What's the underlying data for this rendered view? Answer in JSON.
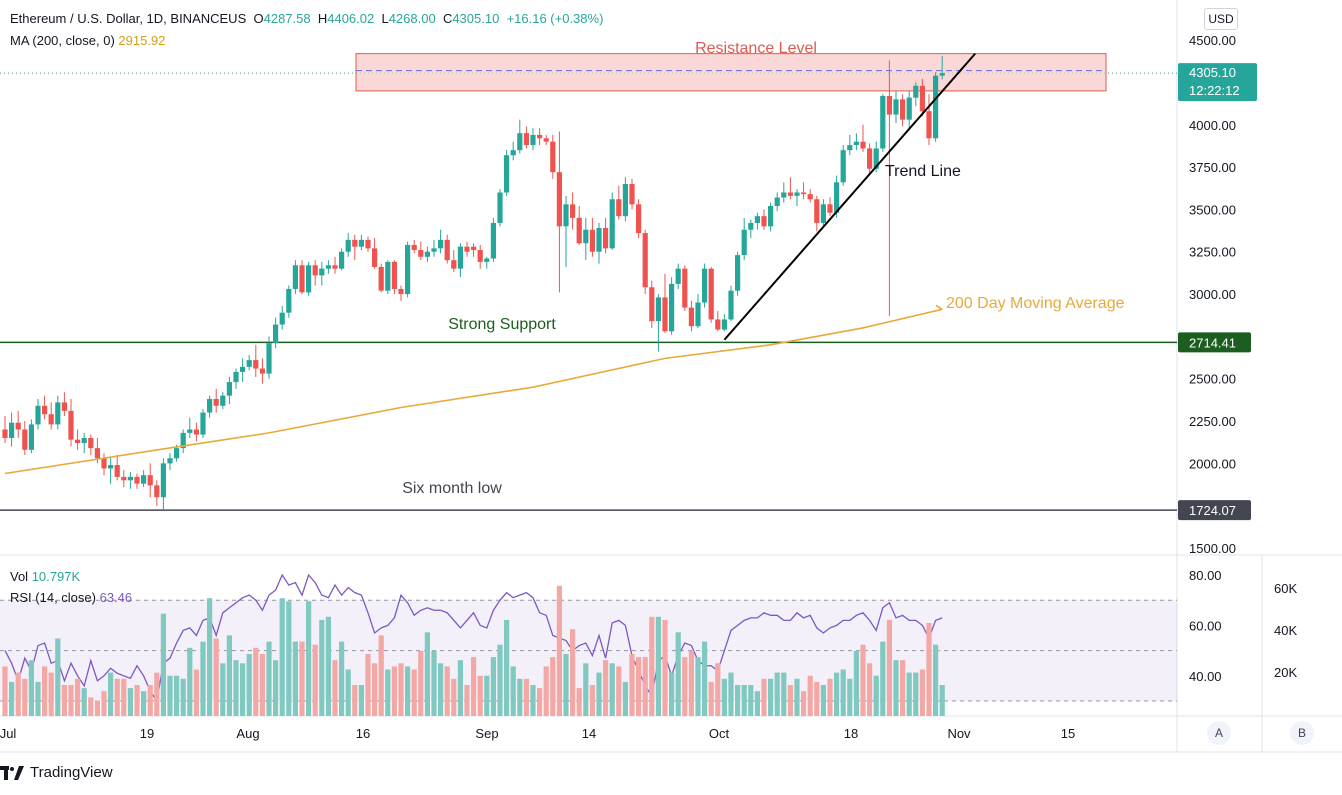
{
  "header": {
    "symbol": "Ethereum / U.S. Dollar, 1D, BINANCEUS",
    "o_label": "O",
    "o": "4287.58",
    "h_label": "H",
    "h": "4406.02",
    "l_label": "L",
    "l": "4268.00",
    "c_label": "C",
    "c": "4305.10",
    "change": "+16.16 (+0.38%)",
    "ma_label": "MA (200, close, 0)",
    "ma_value": "2915.92",
    "vol_label": "Vol",
    "vol_value": "10.797K",
    "rsi_label": "RSI (14, close)",
    "rsi_value": "63.46"
  },
  "price_scale": {
    "currency_button": "USD",
    "ticks": [
      "4500.00",
      "4000.00",
      "3750.00",
      "3500.00",
      "3250.00",
      "3000.00",
      "2500.00",
      "2250.00",
      "2000.00",
      "1500.00"
    ],
    "current_price": "4305.10",
    "countdown": "12:22:12",
    "support_price": "2714.41",
    "low_price": "1724.07"
  },
  "rsi_scale": {
    "ticks": [
      "80.00",
      "60.00",
      "40.00"
    ]
  },
  "vol_scale": {
    "ticks": [
      "60K",
      "40K",
      "20K"
    ]
  },
  "time_axis": [
    "Jul",
    "19",
    "Aug",
    "16",
    "Sep",
    "14",
    "Oct",
    "18",
    "Nov",
    "15"
  ],
  "buttons": {
    "a": "A",
    "b": "B"
  },
  "brand": "TradingView",
  "annotations": {
    "resistance": "Resistance Level",
    "trend": "Trend Line",
    "support": "Strong Support",
    "ma": "200 Day Moving Average",
    "low": "Six month low"
  },
  "colors": {
    "up": "#26a69a",
    "down": "#ef5350",
    "ma": "#e8a93b",
    "rsi": "#7e57c2",
    "support_line": "#1b5e20",
    "resistance_fill": "#f8c8c8"
  },
  "chart_data": {
    "type": "candlestick",
    "title": "Ethereum / U.S. Dollar, 1D, BINANCEUS",
    "ylim": [
      1450,
      4650
    ],
    "support": 2714.41,
    "six_month_low": 1724.07,
    "resistance_zone": [
      4200,
      4420
    ],
    "x_range_days": [
      "2021-07-01",
      "2021-11-22"
    ],
    "candles": [
      [
        0,
        2200,
        2280,
        2120,
        2150
      ],
      [
        1,
        2150,
        2300,
        2100,
        2240
      ],
      [
        2,
        2240,
        2310,
        2150,
        2200
      ],
      [
        3,
        2200,
        2250,
        2050,
        2080
      ],
      [
        4,
        2080,
        2260,
        2060,
        2230
      ],
      [
        5,
        2230,
        2380,
        2200,
        2340
      ],
      [
        6,
        2340,
        2400,
        2260,
        2290
      ],
      [
        7,
        2290,
        2360,
        2200,
        2230
      ],
      [
        8,
        2230,
        2400,
        2200,
        2360
      ],
      [
        9,
        2360,
        2420,
        2280,
        2310
      ],
      [
        10,
        2310,
        2380,
        2100,
        2140
      ],
      [
        11,
        2140,
        2200,
        2080,
        2120
      ],
      [
        12,
        2120,
        2180,
        2060,
        2150
      ],
      [
        13,
        2150,
        2170,
        2050,
        2090
      ],
      [
        14,
        2090,
        2150,
        2000,
        2030
      ],
      [
        15,
        2030,
        2060,
        1930,
        1970
      ],
      [
        16,
        1970,
        2040,
        1880,
        1990
      ],
      [
        17,
        1990,
        2050,
        1900,
        1920
      ],
      [
        18,
        1920,
        1960,
        1860,
        1900
      ],
      [
        19,
        1900,
        1950,
        1850,
        1920
      ],
      [
        20,
        1920,
        1940,
        1850,
        1880
      ],
      [
        21,
        1880,
        1960,
        1860,
        1930
      ],
      [
        22,
        1930,
        2000,
        1800,
        1870
      ],
      [
        23,
        1870,
        1900,
        1750,
        1800
      ],
      [
        24,
        1800,
        2030,
        1730,
        2000
      ],
      [
        25,
        2000,
        2060,
        1960,
        2030
      ],
      [
        26,
        2030,
        2110,
        2010,
        2090
      ],
      [
        27,
        2090,
        2200,
        2060,
        2180
      ],
      [
        28,
        2180,
        2270,
        2150,
        2200
      ],
      [
        29,
        2200,
        2240,
        2130,
        2170
      ],
      [
        30,
        2170,
        2320,
        2150,
        2300
      ],
      [
        31,
        2300,
        2400,
        2270,
        2380
      ],
      [
        32,
        2380,
        2440,
        2300,
        2340
      ],
      [
        33,
        2340,
        2420,
        2320,
        2400
      ],
      [
        34,
        2400,
        2510,
        2350,
        2480
      ],
      [
        35,
        2480,
        2560,
        2440,
        2540
      ],
      [
        36,
        2540,
        2620,
        2480,
        2570
      ],
      [
        37,
        2570,
        2640,
        2550,
        2610
      ],
      [
        38,
        2610,
        2700,
        2510,
        2560
      ],
      [
        39,
        2560,
        2620,
        2470,
        2530
      ],
      [
        40,
        2530,
        2750,
        2500,
        2710
      ],
      [
        41,
        2710,
        2860,
        2680,
        2820
      ],
      [
        42,
        2820,
        2930,
        2790,
        2890
      ],
      [
        43,
        2890,
        3050,
        2860,
        3030
      ],
      [
        44,
        3030,
        3200,
        3000,
        3170
      ],
      [
        45,
        3170,
        3200,
        3000,
        3010
      ],
      [
        46,
        3010,
        3190,
        2990,
        3170
      ],
      [
        47,
        3170,
        3200,
        3050,
        3110
      ],
      [
        48,
        3110,
        3190,
        3050,
        3150
      ],
      [
        49,
        3150,
        3200,
        3120,
        3170
      ],
      [
        50,
        3170,
        3220,
        3120,
        3150
      ],
      [
        51,
        3150,
        3270,
        3140,
        3250
      ],
      [
        52,
        3250,
        3360,
        3220,
        3320
      ],
      [
        53,
        3320,
        3350,
        3200,
        3280
      ],
      [
        54,
        3280,
        3350,
        3260,
        3320
      ],
      [
        55,
        3320,
        3340,
        3250,
        3270
      ],
      [
        56,
        3270,
        3330,
        3150,
        3160
      ],
      [
        57,
        3160,
        3180,
        3010,
        3020
      ],
      [
        58,
        3020,
        3200,
        3000,
        3190
      ],
      [
        59,
        3190,
        3200,
        3000,
        3030
      ],
      [
        60,
        3030,
        3050,
        2960,
        3000
      ],
      [
        61,
        3000,
        3310,
        2980,
        3290
      ],
      [
        62,
        3290,
        3320,
        3240,
        3260
      ],
      [
        63,
        3260,
        3310,
        3200,
        3220
      ],
      [
        64,
        3220,
        3280,
        3190,
        3250
      ],
      [
        65,
        3250,
        3320,
        3220,
        3270
      ],
      [
        66,
        3270,
        3380,
        3240,
        3320
      ],
      [
        67,
        3320,
        3350,
        3180,
        3200
      ],
      [
        68,
        3200,
        3260,
        3130,
        3150
      ],
      [
        69,
        3150,
        3300,
        3100,
        3280
      ],
      [
        70,
        3280,
        3310,
        3220,
        3250
      ],
      [
        71,
        3280,
        3300,
        3220,
        3260
      ],
      [
        72,
        3260,
        3290,
        3150,
        3190
      ],
      [
        73,
        3190,
        3220,
        3150,
        3210
      ],
      [
        74,
        3210,
        3450,
        3190,
        3420
      ],
      [
        75,
        3420,
        3620,
        3400,
        3600
      ],
      [
        76,
        3600,
        3850,
        3580,
        3820
      ],
      [
        77,
        3820,
        3900,
        3790,
        3850
      ],
      [
        78,
        3850,
        4030,
        3830,
        3950
      ],
      [
        79,
        3950,
        3990,
        3860,
        3880
      ],
      [
        80,
        3880,
        3980,
        3850,
        3940
      ],
      [
        81,
        3940,
        3980,
        3880,
        3920
      ],
      [
        82,
        3920,
        3940,
        3880,
        3900
      ],
      [
        83,
        3900,
        3940,
        3680,
        3720
      ],
      [
        84,
        3720,
        3960,
        3010,
        3400
      ],
      [
        85,
        3400,
        3580,
        3160,
        3530
      ],
      [
        86,
        3530,
        3600,
        3380,
        3450
      ],
      [
        87,
        3450,
        3520,
        3290,
        3300
      ],
      [
        88,
        3300,
        3450,
        3200,
        3380
      ],
      [
        89,
        3380,
        3450,
        3220,
        3250
      ],
      [
        90,
        3250,
        3420,
        3180,
        3390
      ],
      [
        91,
        3390,
        3450,
        3240,
        3270
      ],
      [
        92,
        3270,
        3600,
        3260,
        3560
      ],
      [
        93,
        3560,
        3640,
        3440,
        3460
      ],
      [
        94,
        3460,
        3690,
        3430,
        3650
      ],
      [
        95,
        3650,
        3680,
        3500,
        3530
      ],
      [
        96,
        3530,
        3560,
        3330,
        3360
      ],
      [
        97,
        3360,
        3380,
        3000,
        3040
      ],
      [
        98,
        3040,
        3080,
        2800,
        2840
      ],
      [
        99,
        2840,
        3000,
        2660,
        2980
      ],
      [
        100,
        2980,
        3120,
        2770,
        2780
      ],
      [
        101,
        2780,
        3100,
        2760,
        3060
      ],
      [
        102,
        3060,
        3180,
        3030,
        3150
      ],
      [
        103,
        3150,
        3170,
        2900,
        2920
      ],
      [
        104,
        2920,
        2960,
        2780,
        2810
      ],
      [
        105,
        2810,
        3000,
        2800,
        2950
      ],
      [
        106,
        2950,
        3180,
        2920,
        3150
      ],
      [
        107,
        3150,
        3160,
        2830,
        2850
      ],
      [
        108,
        2850,
        2900,
        2780,
        2790
      ],
      [
        109,
        2790,
        2880,
        2780,
        2850
      ],
      [
        110,
        2850,
        3050,
        2840,
        3020
      ],
      [
        111,
        3020,
        3250,
        2990,
        3230
      ],
      [
        112,
        3230,
        3450,
        3200,
        3380
      ],
      [
        113,
        3380,
        3440,
        3330,
        3420
      ],
      [
        114,
        3420,
        3480,
        3380,
        3460
      ],
      [
        115,
        3460,
        3500,
        3380,
        3400
      ],
      [
        116,
        3400,
        3540,
        3370,
        3520
      ],
      [
        117,
        3520,
        3600,
        3490,
        3570
      ],
      [
        118,
        3570,
        3660,
        3540,
        3600
      ],
      [
        119,
        3600,
        3690,
        3560,
        3580
      ],
      [
        120,
        3580,
        3620,
        3520,
        3600
      ],
      [
        121,
        3600,
        3660,
        3560,
        3590
      ],
      [
        122,
        3590,
        3620,
        3540,
        3560
      ],
      [
        123,
        3560,
        3580,
        3370,
        3420
      ],
      [
        124,
        3420,
        3560,
        3390,
        3530
      ],
      [
        125,
        3530,
        3570,
        3460,
        3480
      ],
      [
        126,
        3480,
        3700,
        3450,
        3660
      ],
      [
        127,
        3660,
        3880,
        3640,
        3850
      ],
      [
        128,
        3850,
        3940,
        3820,
        3880
      ],
      [
        129,
        3880,
        3950,
        3850,
        3900
      ],
      [
        130,
        3900,
        4000,
        3840,
        3860
      ],
      [
        131,
        3860,
        3890,
        3700,
        3740
      ],
      [
        132,
        3740,
        3900,
        3720,
        3860
      ],
      [
        133,
        3860,
        4180,
        3840,
        4170
      ],
      [
        134,
        4170,
        4380,
        2870,
        4060
      ],
      [
        135,
        4060,
        4200,
        4010,
        4150
      ],
      [
        136,
        4150,
        4180,
        3990,
        4030
      ],
      [
        137,
        4030,
        4200,
        3980,
        4160
      ],
      [
        138,
        4160,
        4250,
        4110,
        4230
      ],
      [
        139,
        4230,
        4270,
        4050,
        4080
      ],
      [
        140,
        4080,
        4180,
        3880,
        3920
      ],
      [
        141,
        3920,
        4310,
        3900,
        4290
      ],
      [
        142,
        4290,
        4406,
        4268,
        4305
      ]
    ],
    "ma200": [
      [
        0,
        1940
      ],
      [
        24,
        2085
      ],
      [
        40,
        2180
      ],
      [
        60,
        2330
      ],
      [
        80,
        2450
      ],
      [
        100,
        2620
      ],
      [
        116,
        2700
      ],
      [
        130,
        2800
      ],
      [
        142,
        2910
      ]
    ],
    "trend_line": [
      [
        109,
        2730
      ],
      [
        147,
        4420
      ]
    ],
    "rsi": [
      50,
      45,
      38,
      47,
      42,
      52,
      53,
      45,
      46,
      38,
      45,
      40,
      36,
      46,
      38,
      40,
      43,
      41,
      40,
      39,
      44,
      40,
      34,
      30,
      45,
      47,
      53,
      58,
      59,
      56,
      62,
      63,
      56,
      65,
      67,
      69,
      71,
      72,
      70,
      66,
      72,
      74,
      80,
      76,
      77,
      72,
      80,
      77,
      72,
      71,
      76,
      72,
      75,
      73,
      72,
      65,
      57,
      59,
      60,
      63,
      72,
      69,
      64,
      66,
      67,
      66,
      66,
      65,
      62,
      59,
      62,
      65,
      60,
      59,
      66,
      70,
      73,
      71,
      72,
      73,
      71,
      65,
      64,
      56,
      55,
      54,
      50,
      52,
      53,
      48,
      56,
      47,
      61,
      62,
      60,
      48,
      42,
      36,
      32,
      46,
      48,
      40,
      48,
      53,
      52,
      46,
      44,
      44,
      42,
      50,
      58,
      60,
      62,
      63,
      63,
      65,
      64,
      64,
      62,
      62,
      65,
      63,
      64,
      59,
      57,
      59,
      60,
      62,
      62,
      64,
      65,
      62,
      58,
      67,
      69,
      63,
      64,
      62,
      62,
      60,
      55,
      62,
      63
    ],
    "volume": [
      16,
      11,
      14,
      12,
      18,
      11,
      16,
      14,
      25,
      10,
      10,
      12,
      9,
      6,
      5,
      8,
      14,
      12,
      12,
      9,
      10,
      8,
      10,
      14,
      33,
      13,
      13,
      12,
      22,
      15,
      24,
      38,
      25,
      17,
      26,
      18,
      17,
      20,
      22,
      20,
      24,
      18,
      38,
      37,
      24,
      24,
      37,
      23,
      31,
      32,
      18,
      24,
      15,
      10,
      10,
      20,
      17,
      26,
      15,
      16,
      17,
      16,
      15,
      21,
      27,
      21,
      17,
      16,
      12,
      18,
      10,
      19,
      13,
      13,
      19,
      23,
      31,
      16,
      12,
      12,
      10,
      9,
      16,
      19,
      42,
      20,
      28,
      9,
      17,
      10,
      14,
      18,
      17,
      16,
      11,
      20,
      19,
      19,
      32,
      32,
      31,
      14,
      27,
      19,
      21,
      19,
      24,
      11,
      17,
      12,
      14,
      10,
      10,
      10,
      8,
      12,
      12,
      14,
      14,
      10,
      12,
      8,
      13,
      11,
      10,
      12,
      14,
      15,
      12,
      21,
      23,
      17,
      13,
      24,
      31,
      18,
      18,
      14,
      14,
      15,
      30,
      23,
      10
    ]
  }
}
